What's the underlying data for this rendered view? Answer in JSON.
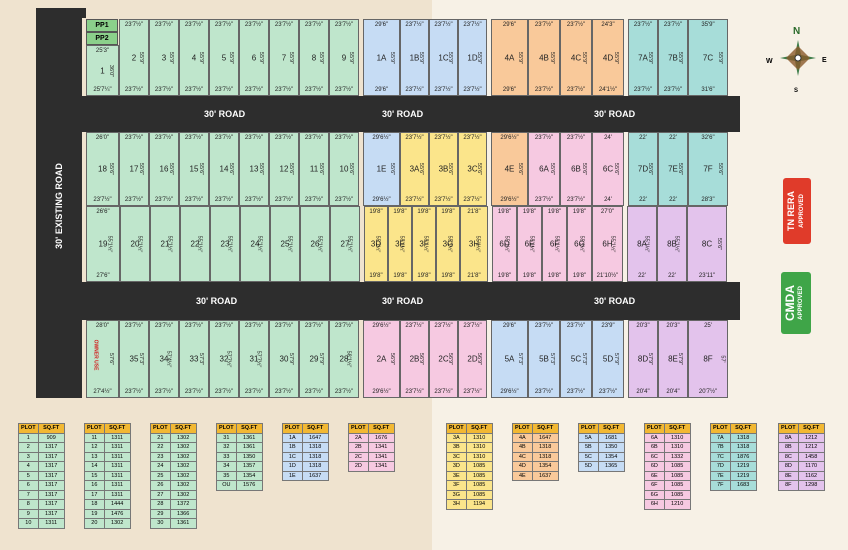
{
  "roads": {
    "existing": "30' EXISTING ROAD",
    "upper": "30' ROAD",
    "lower": "30' ROAD"
  },
  "compass": {
    "n": "N",
    "s": "S",
    "e": "E",
    "w": "W"
  },
  "badges": {
    "rera": {
      "line1": "TN RERA",
      "line2": "APPROVED",
      "color": "#e03b2a"
    },
    "cmda": {
      "line1": "CMDA",
      "line2": "APPROVED",
      "color": "#3fa548"
    }
  },
  "pp": [
    "PP1",
    "PP2"
  ],
  "owner_use": "OWNER USE",
  "row1": [
    {
      "id": "1",
      "top": "25'3\"",
      "bottom": "25'7¼\"",
      "side": "36'0\"",
      "c": "green"
    },
    {
      "id": "2",
      "top": "23'7½\"",
      "bottom": "23'7½\"",
      "side": "55'9\"",
      "c": "green"
    },
    {
      "id": "3",
      "top": "23'7½\"",
      "bottom": "23'7½\"",
      "side": "55'9\"",
      "c": "green"
    },
    {
      "id": "4",
      "top": "23'7½\"",
      "bottom": "23'7½\"",
      "side": "55'9\"",
      "c": "green"
    },
    {
      "id": "5",
      "top": "23'7½\"",
      "bottom": "23'7½\"",
      "side": "55'9\"",
      "c": "green"
    },
    {
      "id": "6",
      "top": "23'7½\"",
      "bottom": "23'7½\"",
      "side": "55'9\"",
      "c": "green"
    },
    {
      "id": "7",
      "top": "23'7½\"",
      "bottom": "23'7½\"",
      "side": "55'9\"",
      "c": "green"
    },
    {
      "id": "8",
      "top": "23'7½\"",
      "bottom": "23'7½\"",
      "side": "55'9\"",
      "c": "green"
    },
    {
      "id": "9",
      "top": "23'7½\"",
      "bottom": "23'7½\"",
      "side": "55'9\"",
      "c": "green"
    },
    {
      "id": "1A",
      "top": "29'6\"",
      "bottom": "29'6\"",
      "side": "55'9\"",
      "c": "blue"
    },
    {
      "id": "1B",
      "top": "23'7½\"",
      "bottom": "23'7½\"",
      "side": "55'9\"",
      "c": "blue"
    },
    {
      "id": "1C",
      "top": "23'7½\"",
      "bottom": "23'7½\"",
      "side": "55'9\"",
      "c": "blue"
    },
    {
      "id": "1D",
      "top": "23'7½\"",
      "bottom": "23'7½\"",
      "side": "55'9\"",
      "c": "blue"
    },
    {
      "id": "4A",
      "top": "29'6\"",
      "bottom": "29'6\"",
      "side": "55'9\"",
      "c": "orange"
    },
    {
      "id": "4B",
      "top": "23'7½\"",
      "bottom": "23'7½\"",
      "side": "55'9\"",
      "c": "orange"
    },
    {
      "id": "4C",
      "top": "23'7½\"",
      "bottom": "23'7½\"",
      "side": "55'9\"",
      "c": "orange"
    },
    {
      "id": "4D",
      "top": "24'3\"",
      "bottom": "24'1½\"",
      "side": "55'9\"",
      "c": "orange"
    },
    {
      "id": "7A",
      "top": "23'7½\"",
      "bottom": "23'7½\"",
      "side": "55'9\"",
      "c": "teal"
    },
    {
      "id": "7B",
      "top": "23'7½\"",
      "bottom": "23'7½\"",
      "side": "55'9\"",
      "c": "teal"
    },
    {
      "id": "7C",
      "top": "35'9\"",
      "bottom": "31'6\"",
      "side": "55'9\"",
      "c": "teal"
    }
  ],
  "row2": [
    {
      "id": "18",
      "top": "26'0\"",
      "bottom": "23'7½\"",
      "side": "55'6\"",
      "c": "green"
    },
    {
      "id": "17",
      "top": "23'7½\"",
      "bottom": "23'7½\"",
      "side": "55'6\"",
      "c": "green"
    },
    {
      "id": "16",
      "top": "23'7½\"",
      "bottom": "23'7½\"",
      "side": "55'6\"",
      "c": "green"
    },
    {
      "id": "15",
      "top": "23'7½\"",
      "bottom": "23'7½\"",
      "side": "55'6\"",
      "c": "green"
    },
    {
      "id": "14",
      "top": "23'7½\"",
      "bottom": "23'7½\"",
      "side": "55'6\"",
      "c": "green"
    },
    {
      "id": "13",
      "top": "23'7½\"",
      "bottom": "23'7½\"",
      "side": "55'6\"",
      "c": "green"
    },
    {
      "id": "12",
      "top": "23'7½\"",
      "bottom": "23'7½\"",
      "side": "55'6\"",
      "c": "green"
    },
    {
      "id": "11",
      "top": "23'7½\"",
      "bottom": "23'7½\"",
      "side": "55'6\"",
      "c": "green"
    },
    {
      "id": "10",
      "top": "23'7½\"",
      "bottom": "23'7½\"",
      "side": "55'6\"",
      "c": "green"
    },
    {
      "id": "1E",
      "top": "29'6½\"",
      "bottom": "29'6½\"",
      "side": "55'6\"",
      "c": "blue"
    },
    {
      "id": "3A",
      "top": "23'7½\"",
      "bottom": "23'7½\"",
      "side": "55'6\"",
      "c": "yellow"
    },
    {
      "id": "3B",
      "top": "23'7½\"",
      "bottom": "23'7½\"",
      "side": "55'6\"",
      "c": "yellow"
    },
    {
      "id": "3C",
      "top": "23'7½\"",
      "bottom": "23'7½\"",
      "side": "55'6\"",
      "c": "yellow"
    },
    {
      "id": "4E",
      "top": "29'6½\"",
      "bottom": "29'6½\"",
      "side": "55'6\"",
      "c": "orange"
    },
    {
      "id": "6A",
      "top": "23'7½\"",
      "bottom": "23'7½\"",
      "side": "55'6\"",
      "c": "pink"
    },
    {
      "id": "6B",
      "top": "23'7½\"",
      "bottom": "23'7½\"",
      "side": "55'6\"",
      "c": "pink"
    },
    {
      "id": "6C",
      "top": "24'",
      "bottom": "24'",
      "side": "55'6\"",
      "c": "pink"
    },
    {
      "id": "7D",
      "top": "22'",
      "bottom": "22'",
      "side": "55'6\"",
      "c": "teal"
    },
    {
      "id": "7E",
      "top": "22'",
      "bottom": "22'",
      "side": "55'6\"",
      "c": "teal"
    },
    {
      "id": "7F",
      "top": "32'6\"",
      "bottom": "28'3\"",
      "side": "55'6\"",
      "c": "teal"
    }
  ],
  "row3": [
    {
      "id": "19",
      "top": "26'6\"",
      "bottom": "27'6\"",
      "side": "55'1½\"",
      "c": "green"
    },
    {
      "id": "20",
      "top": "",
      "bottom": "",
      "side": "55'1½\"",
      "c": "green"
    },
    {
      "id": "21",
      "top": "",
      "bottom": "",
      "side": "55'1½\"",
      "c": "green"
    },
    {
      "id": "22",
      "top": "",
      "bottom": "",
      "side": "55'1½\"",
      "c": "green"
    },
    {
      "id": "23",
      "top": "",
      "bottom": "",
      "side": "55'1½\"",
      "c": "green"
    },
    {
      "id": "24",
      "top": "",
      "bottom": "",
      "side": "55'1½\"",
      "c": "green"
    },
    {
      "id": "25",
      "top": "",
      "bottom": "",
      "side": "55'1½\"",
      "c": "green"
    },
    {
      "id": "26",
      "top": "",
      "bottom": "",
      "side": "55'1½\"",
      "c": "green"
    },
    {
      "id": "27",
      "top": "",
      "bottom": "",
      "side": "55'1½\"",
      "c": "green"
    },
    {
      "id": "3D",
      "top": "19'8\"",
      "bottom": "19'8\"",
      "side": "55'1½\"",
      "c": "yellow"
    },
    {
      "id": "3E",
      "top": "19'8\"",
      "bottom": "19'8\"",
      "side": "55'1½\"",
      "c": "yellow"
    },
    {
      "id": "3F",
      "top": "19'8\"",
      "bottom": "19'8\"",
      "side": "55'1½\"",
      "c": "yellow"
    },
    {
      "id": "3G",
      "top": "19'8\"",
      "bottom": "19'8\"",
      "side": "55'1½\"",
      "c": "yellow"
    },
    {
      "id": "3H",
      "top": "21'8\"",
      "bottom": "21'8\"",
      "side": "55'1½\"",
      "c": "yellow"
    },
    {
      "id": "6D",
      "top": "19'8\"",
      "bottom": "19'8\"",
      "side": "55'1½\"",
      "c": "pink"
    },
    {
      "id": "6E",
      "top": "19'8\"",
      "bottom": "19'8\"",
      "side": "55'1½\"",
      "c": "pink"
    },
    {
      "id": "6F",
      "top": "19'8\"",
      "bottom": "19'8\"",
      "side": "55'1½\"",
      "c": "pink"
    },
    {
      "id": "6G",
      "top": "19'8\"",
      "bottom": "19'8\"",
      "side": "55'1½\"",
      "c": "pink"
    },
    {
      "id": "6H",
      "top": "27'0\"",
      "bottom": "21'10½\"",
      "side": "55'1½\"",
      "c": "pink"
    },
    {
      "id": "8A",
      "top": "",
      "bottom": "22'",
      "side": "55'1½\"",
      "c": "lilac"
    },
    {
      "id": "8B",
      "top": "",
      "bottom": "22'",
      "side": "55'1½\"",
      "c": "lilac"
    },
    {
      "id": "8C",
      "top": "",
      "bottom": "23'11\"",
      "side": "55'6\"",
      "c": "lilac"
    }
  ],
  "row4": [
    {
      "id": "OU",
      "top": "28'0\"",
      "bottom": "27'4½\"",
      "side": "57'6\"",
      "c": "green"
    },
    {
      "id": "35",
      "top": "23'7½\"",
      "bottom": "23'7½\"",
      "side": "57'3\"",
      "c": "green"
    },
    {
      "id": "34",
      "top": "23'7½\"",
      "bottom": "23'7½\"",
      "side": "57'4½\"",
      "c": "green"
    },
    {
      "id": "33",
      "top": "23'7½\"",
      "bottom": "23'7½\"",
      "side": "57'3\"",
      "c": "green"
    },
    {
      "id": "32",
      "top": "23'7½\"",
      "bottom": "23'7½\"",
      "side": "57'7½\"",
      "c": "green"
    },
    {
      "id": "31",
      "top": "23'7½\"",
      "bottom": "23'7½\"",
      "side": "57'7½\"",
      "c": "green"
    },
    {
      "id": "30",
      "top": "23'7½\"",
      "bottom": "23'7½\"",
      "side": "57'9\"",
      "c": "green"
    },
    {
      "id": "29",
      "top": "23'7½\"",
      "bottom": "23'7½\"",
      "side": "57'9\"",
      "c": "green"
    },
    {
      "id": "28",
      "top": "23'7½\"",
      "bottom": "23'7½\"",
      "side": "58'1½\"",
      "c": "green"
    },
    {
      "id": "2A",
      "top": "29'6½\"",
      "bottom": "29'6½\"",
      "side": "56'9\"",
      "c": "pink"
    },
    {
      "id": "2B",
      "top": "23'7½\"",
      "bottom": "23'7½\"",
      "side": "56'9\"",
      "c": "pink"
    },
    {
      "id": "2C",
      "top": "23'7½\"",
      "bottom": "23'7½\"",
      "side": "56'9\"",
      "c": "pink"
    },
    {
      "id": "2D",
      "top": "23'7½\"",
      "bottom": "23'7½\"",
      "side": "56'9\"",
      "c": "pink"
    },
    {
      "id": "5A",
      "top": "29'6\"",
      "bottom": "29'6½\"",
      "side": "57'3\"",
      "c": "blue"
    },
    {
      "id": "5B",
      "top": "23'7½\"",
      "bottom": "23'7½\"",
      "side": "57'3\"",
      "c": "blue"
    },
    {
      "id": "5C",
      "top": "23'7½\"",
      "bottom": "23'7½\"",
      "side": "57'3\"",
      "c": "blue"
    },
    {
      "id": "5D",
      "top": "23'9\"",
      "bottom": "23'7½\"",
      "side": "57'9\"",
      "c": "blue"
    },
    {
      "id": "8D",
      "top": "20'3\"",
      "bottom": "20'4\"",
      "side": "57'9\"",
      "c": "lilac"
    },
    {
      "id": "8E",
      "top": "20'3\"",
      "bottom": "20'4\"",
      "side": "57'9\"",
      "c": "lilac"
    },
    {
      "id": "8F",
      "top": "25'",
      "bottom": "20'7½\"",
      "side": "57'",
      "c": "lilac"
    }
  ],
  "legend_header": {
    "plot": "PLOT",
    "sqft": "SQ.FT"
  },
  "tables": [
    {
      "rows": [
        [
          "1",
          "909"
        ],
        [
          "2",
          "1317"
        ],
        [
          "3",
          "1317"
        ],
        [
          "4",
          "1317"
        ],
        [
          "5",
          "1317"
        ],
        [
          "6",
          "1317"
        ],
        [
          "7",
          "1317"
        ],
        [
          "8",
          "1317"
        ],
        [
          "9",
          "1317"
        ],
        [
          "10",
          "1311"
        ]
      ]
    },
    {
      "rows": [
        [
          "11",
          "1311"
        ],
        [
          "12",
          "1311"
        ],
        [
          "13",
          "1311"
        ],
        [
          "14",
          "1311"
        ],
        [
          "15",
          "1311"
        ],
        [
          "16",
          "1311"
        ],
        [
          "17",
          "1311"
        ],
        [
          "18",
          "1444"
        ],
        [
          "19",
          "1476"
        ],
        [
          "20",
          "1302"
        ]
      ]
    },
    {
      "rows": [
        [
          "21",
          "1302"
        ],
        [
          "22",
          "1302"
        ],
        [
          "23",
          "1302"
        ],
        [
          "24",
          "1302"
        ],
        [
          "25",
          "1302"
        ],
        [
          "26",
          "1302"
        ],
        [
          "27",
          "1302"
        ],
        [
          "28",
          "1372"
        ],
        [
          "29",
          "1366"
        ],
        [
          "30",
          "1361"
        ]
      ]
    },
    {
      "rows": [
        [
          "31",
          "1361"
        ],
        [
          "32",
          "1361"
        ],
        [
          "33",
          "1350"
        ],
        [
          "34",
          "1357"
        ],
        [
          "35",
          "1354"
        ],
        [
          "OU",
          "1576"
        ]
      ]
    },
    {
      "rows": [
        [
          "1A",
          "1647"
        ],
        [
          "1B",
          "1318"
        ],
        [
          "1C",
          "1318"
        ],
        [
          "1D",
          "1318"
        ],
        [
          "1E",
          "1637"
        ]
      ]
    },
    {
      "rows": [
        [
          "2A",
          "1676"
        ],
        [
          "2B",
          "1341"
        ],
        [
          "2C",
          "1341"
        ],
        [
          "2D",
          "1341"
        ]
      ]
    },
    {
      "rows": [
        [
          "3A",
          "1310"
        ],
        [
          "3B",
          "1310"
        ],
        [
          "3C",
          "1310"
        ],
        [
          "3D",
          "1085"
        ],
        [
          "3E",
          "1085"
        ],
        [
          "3F",
          "1085"
        ],
        [
          "3G",
          "1085"
        ],
        [
          "3H",
          "1194"
        ]
      ]
    },
    {
      "rows": [
        [
          "4A",
          "1647"
        ],
        [
          "4B",
          "1318"
        ],
        [
          "4C",
          "1318"
        ],
        [
          "4D",
          "1354"
        ],
        [
          "4E",
          "1637"
        ]
      ]
    },
    {
      "rows": [
        [
          "5A",
          "1681"
        ],
        [
          "5B",
          "1350"
        ],
        [
          "5C",
          "1354"
        ],
        [
          "5D",
          "1365"
        ]
      ]
    },
    {
      "rows": [
        [
          "6A",
          "1310"
        ],
        [
          "6B",
          "1310"
        ],
        [
          "6C",
          "1332"
        ],
        [
          "6D",
          "1085"
        ],
        [
          "6E",
          "1085"
        ],
        [
          "6F",
          "1085"
        ],
        [
          "6G",
          "1085"
        ],
        [
          "6H",
          "1210"
        ]
      ]
    },
    {
      "rows": [
        [
          "7A",
          "1318"
        ],
        [
          "7B",
          "1318"
        ],
        [
          "7C",
          "1876"
        ],
        [
          "7D",
          "1219"
        ],
        [
          "7E",
          "1219"
        ],
        [
          "7F",
          "1683"
        ]
      ]
    },
    {
      "rows": [
        [
          "8A",
          "1212"
        ],
        [
          "8B",
          "1212"
        ],
        [
          "8C",
          "1458"
        ],
        [
          "8D",
          "1170"
        ],
        [
          "8E",
          "1162"
        ],
        [
          "8F",
          "1298"
        ]
      ]
    }
  ],
  "colors": {
    "road": "#2d2d2d",
    "green": "#bfe6cc",
    "blue": "#c6dcf4",
    "orange": "#f9c99a",
    "teal": "#a7ddd9",
    "pink": "#f6c9e1",
    "lilac": "#e3c3ec",
    "yellow": "#fbe58b",
    "pp": "#8bd08b",
    "legend_header": "#f2b833"
  }
}
